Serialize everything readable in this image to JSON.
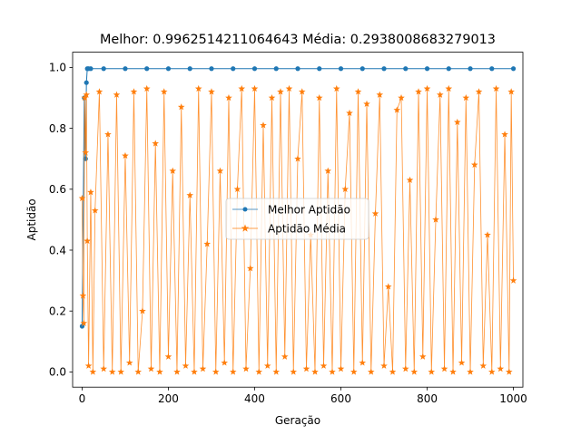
{
  "chart_data": {
    "type": "line",
    "title": "Melhor: 0.9962514211064643 Média: 0.2938008683279013",
    "xlabel": "Geração",
    "ylabel": "Aptidão",
    "xlim": [
      -22,
      1022
    ],
    "ylim": [
      -0.05,
      1.05
    ],
    "xticks": [
      0,
      200,
      400,
      600,
      800,
      1000
    ],
    "yticks": [
      0.0,
      0.2,
      0.4,
      0.6,
      0.8,
      1.0
    ],
    "xtick_labels": [
      "0",
      "200",
      "400",
      "600",
      "800",
      "1000"
    ],
    "ytick_labels": [
      "0.0",
      "0.2",
      "0.4",
      "0.6",
      "0.8",
      "1.0"
    ],
    "legend_position": "center",
    "series": [
      {
        "name": "Melhor Aptidão",
        "color": "#1f77b4",
        "marker": "circle",
        "x": [
          0,
          5,
          8,
          10,
          12,
          15,
          20,
          50,
          100,
          150,
          200,
          250,
          300,
          350,
          400,
          450,
          500,
          550,
          600,
          650,
          700,
          750,
          800,
          850,
          900,
          950,
          1000
        ],
        "values": [
          0.15,
          0.9,
          0.7,
          0.95,
          0.996,
          0.996,
          0.996,
          0.996,
          0.996,
          0.996,
          0.996,
          0.996,
          0.996,
          0.996,
          0.996,
          0.996,
          0.996,
          0.996,
          0.996,
          0.996,
          0.996,
          0.996,
          0.996,
          0.996,
          0.996,
          0.996,
          0.996
        ]
      },
      {
        "name": "Aptidão Média",
        "color": "#ff7f0e",
        "marker": "star",
        "x": [
          0,
          2,
          4,
          6,
          8,
          10,
          12,
          15,
          20,
          25,
          30,
          40,
          50,
          60,
          70,
          80,
          90,
          100,
          110,
          120,
          130,
          140,
          150,
          160,
          170,
          180,
          190,
          200,
          210,
          220,
          230,
          240,
          250,
          260,
          270,
          280,
          290,
          300,
          310,
          320,
          330,
          340,
          350,
          360,
          370,
          380,
          390,
          400,
          410,
          420,
          430,
          440,
          450,
          460,
          470,
          480,
          490,
          500,
          510,
          520,
          530,
          540,
          550,
          560,
          570,
          580,
          590,
          600,
          610,
          620,
          630,
          640,
          650,
          660,
          670,
          680,
          690,
          700,
          710,
          720,
          730,
          740,
          750,
          760,
          770,
          780,
          790,
          800,
          810,
          820,
          830,
          840,
          850,
          860,
          870,
          880,
          890,
          900,
          910,
          920,
          930,
          940,
          950,
          960,
          970,
          980,
          990,
          995,
          1000
        ],
        "values": [
          0.57,
          0.25,
          0.16,
          0.9,
          0.72,
          0.91,
          0.43,
          0.02,
          0.59,
          0.0,
          0.53,
          0.92,
          0.01,
          0.78,
          0.0,
          0.91,
          0.0,
          0.71,
          0.03,
          0.92,
          0.0,
          0.2,
          0.93,
          0.01,
          0.75,
          0.0,
          0.92,
          0.05,
          0.66,
          0.0,
          0.87,
          0.02,
          0.58,
          0.0,
          0.93,
          0.01,
          0.42,
          0.92,
          0.0,
          0.66,
          0.03,
          0.9,
          0.0,
          0.6,
          0.93,
          0.01,
          0.34,
          0.93,
          0.0,
          0.81,
          0.02,
          0.9,
          0.0,
          0.92,
          0.05,
          0.93,
          0.0,
          0.7,
          0.92,
          0.01,
          0.45,
          0.0,
          0.9,
          0.02,
          0.66,
          0.0,
          0.93,
          0.01,
          0.6,
          0.85,
          0.0,
          0.92,
          0.03,
          0.88,
          0.0,
          0.52,
          0.91,
          0.02,
          0.28,
          0.0,
          0.86,
          0.9,
          0.01,
          0.63,
          0.0,
          0.92,
          0.05,
          0.93,
          0.0,
          0.5,
          0.91,
          0.01,
          0.93,
          0.0,
          0.82,
          0.03,
          0.9,
          0.0,
          0.68,
          0.92,
          0.02,
          0.45,
          0.0,
          0.93,
          0.01,
          0.78,
          0.0,
          0.92,
          0.3
        ]
      }
    ]
  }
}
